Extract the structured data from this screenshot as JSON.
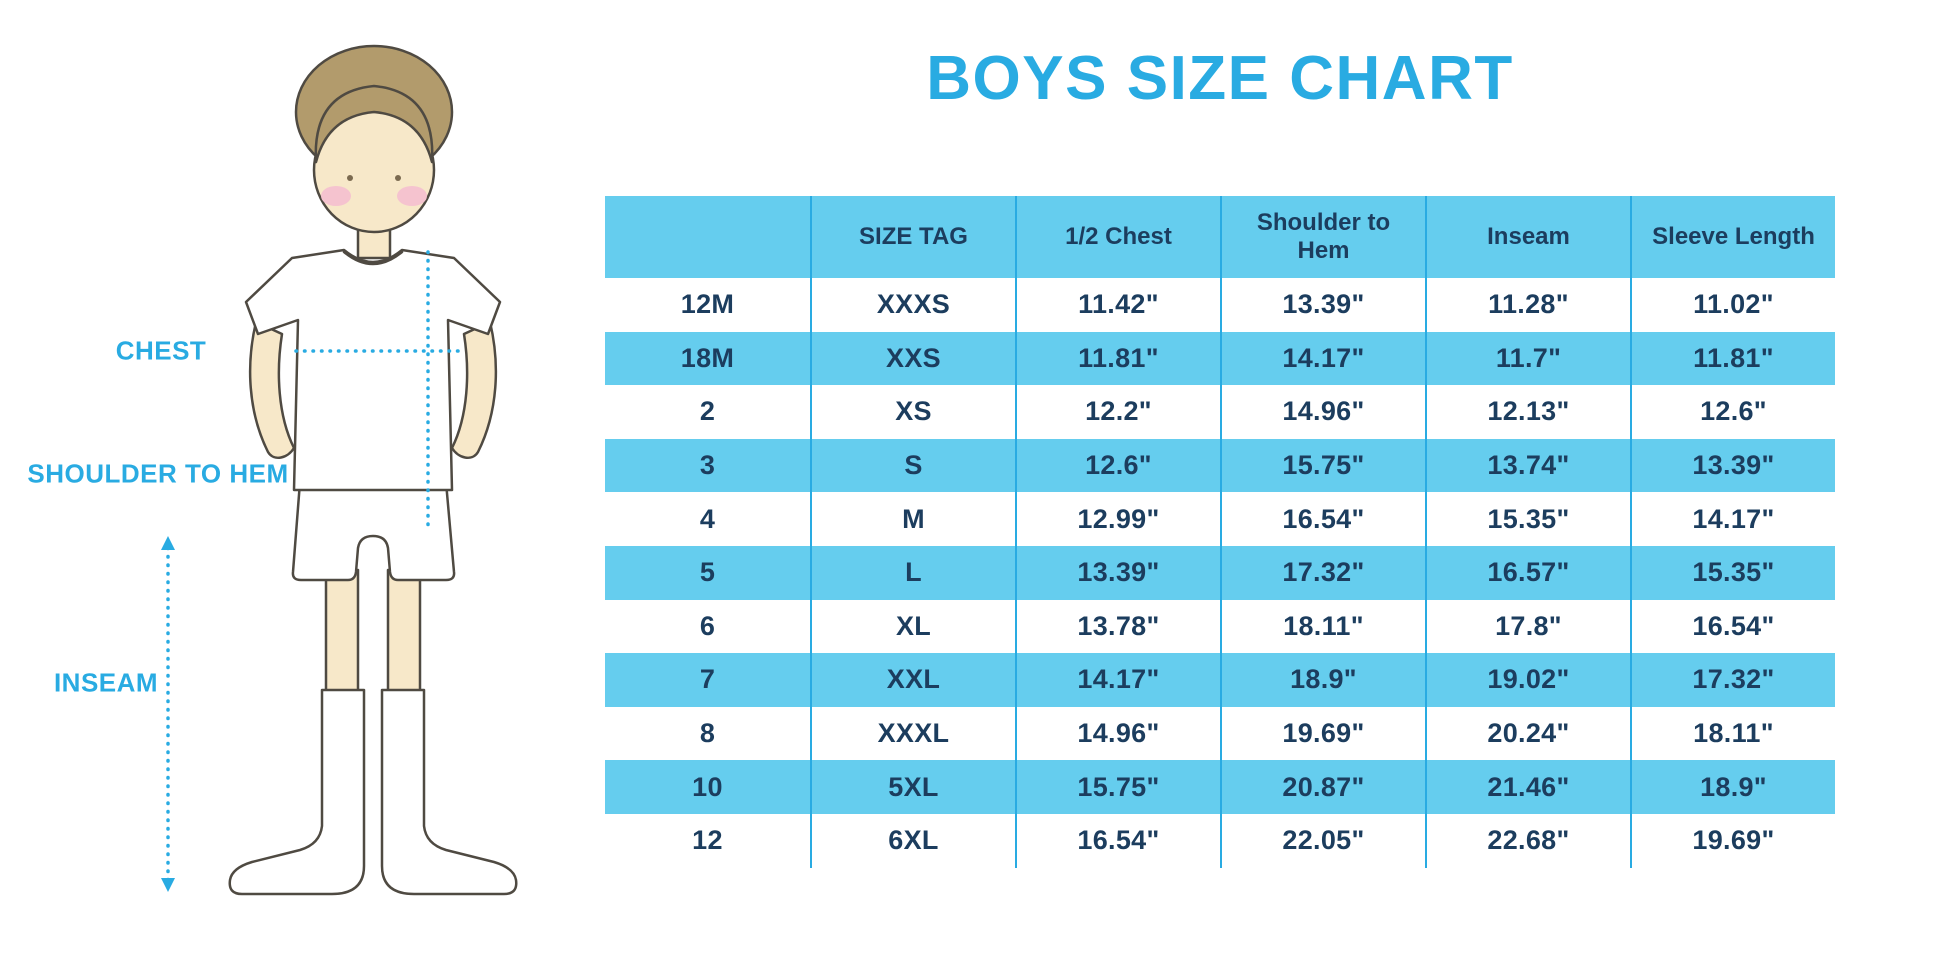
{
  "colors": {
    "accent": "#29ABE2",
    "row_fill": "#65CDEE",
    "table_text": "#1C3D5E",
    "skin": "#F7E8C9",
    "hair": "#B29B6C",
    "cheek": "#F5C3CF",
    "outline": "#4F4A42"
  },
  "figure": {
    "labels": {
      "chest": "CHEST",
      "shoulder_to_hem": "SHOULDER TO HEM",
      "inseam": "INSEAM"
    }
  },
  "chart_data": {
    "type": "table",
    "title": "BOYS SIZE CHART",
    "columns": [
      "",
      "SIZE TAG",
      "1/2 Chest",
      "Shoulder to Hem",
      "Inseam",
      "Sleeve Length"
    ],
    "rows": [
      [
        "12M",
        "XXXS",
        "11.42\"",
        "13.39\"",
        "11.28\"",
        "11.02\""
      ],
      [
        "18M",
        "XXS",
        "11.81\"",
        "14.17\"",
        "11.7\"",
        "11.81\""
      ],
      [
        "2",
        "XS",
        "12.2\"",
        "14.96\"",
        "12.13\"",
        "12.6\""
      ],
      [
        "3",
        "S",
        "12.6\"",
        "15.75\"",
        "13.74\"",
        "13.39\""
      ],
      [
        "4",
        "M",
        "12.99\"",
        "16.54\"",
        "15.35\"",
        "14.17\""
      ],
      [
        "5",
        "L",
        "13.39\"",
        "17.32\"",
        "16.57\"",
        "15.35\""
      ],
      [
        "6",
        "XL",
        "13.78\"",
        "18.11\"",
        "17.8\"",
        "16.54\""
      ],
      [
        "7",
        "XXL",
        "14.17\"",
        "18.9\"",
        "19.02\"",
        "17.32\""
      ],
      [
        "8",
        "XXXL",
        "14.96\"",
        "19.69\"",
        "20.24\"",
        "18.11\""
      ],
      [
        "10",
        "5XL",
        "15.75\"",
        "20.87\"",
        "21.46\"",
        "18.9\""
      ],
      [
        "12",
        "6XL",
        "16.54\"",
        "22.05\"",
        "22.68\"",
        "19.69\""
      ]
    ]
  }
}
